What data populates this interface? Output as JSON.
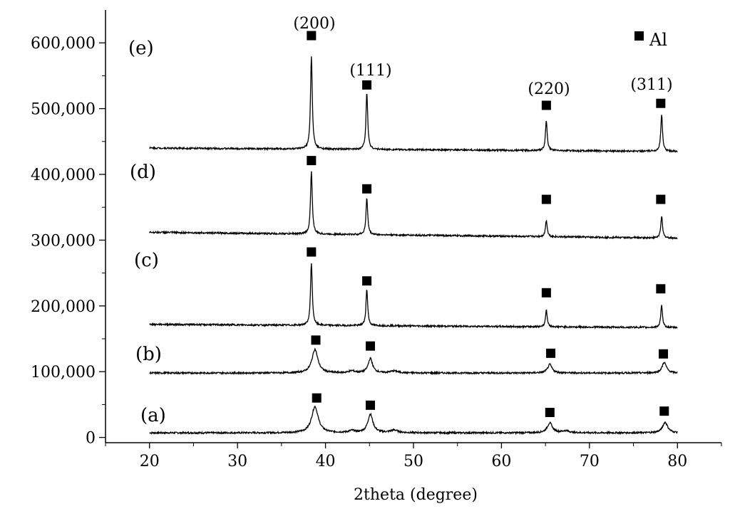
{
  "chart_data": {
    "type": "line",
    "xlabel": "2theta (degree)",
    "ylabel": "",
    "xlim": [
      15,
      85
    ],
    "ylim": [
      -8000,
      650000
    ],
    "x_ticks": [
      20,
      30,
      40,
      50,
      60,
      70,
      80
    ],
    "x_tick_labels": [
      "20",
      "30",
      "40",
      "50",
      "60",
      "70",
      "80"
    ],
    "y_ticks": [
      0,
      100000,
      200000,
      300000,
      400000,
      500000,
      600000
    ],
    "y_tick_labels": [
      "0",
      "100,000",
      "200,000",
      "300,000",
      "400,000",
      "500,000",
      "600,000"
    ],
    "grid": false,
    "legend": {
      "marker": "square",
      "label": "Al",
      "position": "top-right"
    },
    "miller_indices": [
      {
        "label": "(200)",
        "x": 38.4
      },
      {
        "label": "(111)",
        "x": 44.7
      },
      {
        "label": "(220)",
        "x": 65.1
      },
      {
        "label": "(311)",
        "x": 78.2
      }
    ],
    "series": [
      {
        "name": "(a)",
        "baseline": 7000,
        "end_baseline": 7000,
        "peaks": [
          {
            "x": 38.8,
            "height": 40000,
            "width": 0.45
          },
          {
            "x": 43.0,
            "height": 3000,
            "width": 0.4
          },
          {
            "x": 45.1,
            "height": 28000,
            "width": 0.35
          },
          {
            "x": 47.8,
            "height": 4000,
            "width": 0.5
          },
          {
            "x": 65.5,
            "height": 15000,
            "width": 0.35
          },
          {
            "x": 67.3,
            "height": 3000,
            "width": 0.5
          },
          {
            "x": 78.6,
            "height": 16000,
            "width": 0.35
          }
        ],
        "markers": [
          {
            "x": 39.0,
            "y": 60000
          },
          {
            "x": 45.1,
            "y": 49000
          },
          {
            "x": 65.5,
            "y": 38000
          },
          {
            "x": 78.5,
            "y": 40000
          }
        ]
      },
      {
        "name": "(b)",
        "baseline": 98000,
        "end_baseline": 98000,
        "peaks": [
          {
            "x": 38.8,
            "height": 36000,
            "width": 0.4
          },
          {
            "x": 43.0,
            "height": 3000,
            "width": 0.4
          },
          {
            "x": 45.1,
            "height": 22000,
            "width": 0.3
          },
          {
            "x": 47.8,
            "height": 3000,
            "width": 0.5
          },
          {
            "x": 65.5,
            "height": 13000,
            "width": 0.3
          },
          {
            "x": 78.5,
            "height": 16000,
            "width": 0.3
          }
        ],
        "markers": [
          {
            "x": 38.9,
            "y": 148000
          },
          {
            "x": 45.1,
            "y": 139000
          },
          {
            "x": 65.6,
            "y": 128000
          },
          {
            "x": 78.4,
            "y": 127000
          }
        ]
      },
      {
        "name": "(c)",
        "baseline": 172000,
        "end_baseline": 167000,
        "peaks": [
          {
            "x": 38.4,
            "height": 95000,
            "width": 0.12
          },
          {
            "x": 44.7,
            "height": 55000,
            "width": 0.12
          },
          {
            "x": 65.1,
            "height": 25000,
            "width": 0.12
          },
          {
            "x": 78.2,
            "height": 33000,
            "width": 0.12
          }
        ],
        "markers": [
          {
            "x": 38.4,
            "y": 282000
          },
          {
            "x": 44.7,
            "y": 238000
          },
          {
            "x": 65.1,
            "y": 220000
          },
          {
            "x": 78.1,
            "y": 226000
          }
        ]
      },
      {
        "name": "(d)",
        "baseline": 312000,
        "end_baseline": 303000,
        "peaks": [
          {
            "x": 38.4,
            "height": 95000,
            "width": 0.12
          },
          {
            "x": 44.7,
            "height": 55000,
            "width": 0.12
          },
          {
            "x": 65.1,
            "height": 25000,
            "width": 0.12
          },
          {
            "x": 78.2,
            "height": 33000,
            "width": 0.12
          }
        ],
        "markers": [
          {
            "x": 38.4,
            "y": 421000
          },
          {
            "x": 44.7,
            "y": 378000
          },
          {
            "x": 65.1,
            "y": 362000
          },
          {
            "x": 78.1,
            "y": 362000
          }
        ]
      },
      {
        "name": "(e)",
        "baseline": 440000,
        "end_baseline": 435000,
        "peaks": [
          {
            "x": 38.4,
            "height": 140000,
            "width": 0.12
          },
          {
            "x": 44.7,
            "height": 85000,
            "width": 0.12
          },
          {
            "x": 65.1,
            "height": 45000,
            "width": 0.12
          },
          {
            "x": 78.2,
            "height": 55000,
            "width": 0.12
          }
        ],
        "markers": [
          {
            "x": 38.4,
            "y": 611000
          },
          {
            "x": 44.7,
            "y": 536000
          },
          {
            "x": 65.1,
            "y": 505000
          },
          {
            "x": 78.1,
            "y": 508000
          }
        ]
      }
    ]
  },
  "colors": {
    "line": "#000000",
    "axis": "#000000",
    "marker": "#000000",
    "background": "#ffffff"
  }
}
